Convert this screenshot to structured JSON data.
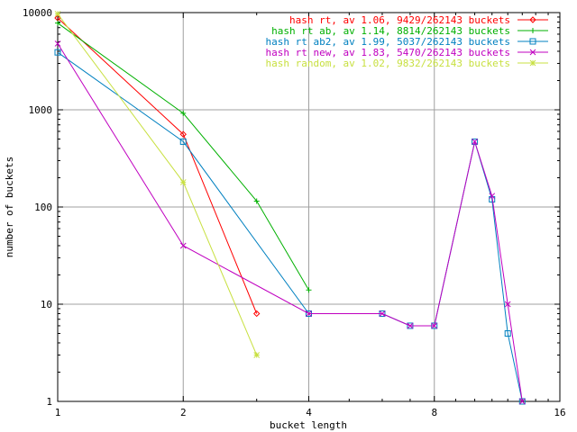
{
  "chart_data": {
    "type": "line",
    "title": "",
    "xlabel": "bucket length",
    "ylabel": "number of buckets",
    "x_scale": "log2",
    "y_scale": "log10",
    "xlim": [
      1,
      16
    ],
    "ylim": [
      1,
      10000
    ],
    "grid": true,
    "legend_position": "top-right",
    "x_ticks": [
      {
        "value": 1,
        "label": "1"
      },
      {
        "value": 2,
        "label": "2"
      },
      {
        "value": 4,
        "label": "4"
      },
      {
        "value": 8,
        "label": "8"
      },
      {
        "value": 16,
        "label": "16"
      }
    ],
    "y_ticks": [
      {
        "value": 1,
        "label": "1"
      },
      {
        "value": 10,
        "label": "10"
      },
      {
        "value": 100,
        "label": "100"
      },
      {
        "value": 1000,
        "label": "1000"
      },
      {
        "value": 10000,
        "label": "10000"
      }
    ],
    "series": [
      {
        "name": "hash rt, av 1.06, 9429/262143 buckets",
        "color": "#ff0000",
        "marker": "diamond",
        "x": [
          1,
          2,
          3
        ],
        "y": [
          8800,
          560,
          8
        ]
      },
      {
        "name": "hash rt ab, av 1.14, 8814/262143 buckets",
        "color": "#00b000",
        "marker": "plus",
        "x": [
          1,
          2,
          3,
          4
        ],
        "y": [
          7800,
          920,
          115,
          14
        ]
      },
      {
        "name": "hash rt ab2, av 1.99, 5037/262143 buckets",
        "color": "#0080c0",
        "marker": "square",
        "x": [
          1,
          2,
          4,
          6,
          7,
          8,
          10,
          11,
          12,
          13
        ],
        "y": [
          3900,
          470,
          8,
          8,
          6,
          6,
          470,
          120,
          5,
          1
        ]
      },
      {
        "name": "hash rt new, av 1.83, 5470/262143 buckets",
        "color": "#c000c0",
        "marker": "cross",
        "x": [
          1,
          2,
          4,
          6,
          7,
          8,
          10,
          11,
          12,
          13
        ],
        "y": [
          4800,
          40,
          8,
          8,
          6,
          6,
          470,
          130,
          10,
          1
        ]
      },
      {
        "name": "hash random, av 1.02, 9832/262143 buckets",
        "color": "#c8e040",
        "marker": "star",
        "x": [
          1,
          2,
          3
        ],
        "y": [
          9700,
          180,
          3
        ]
      }
    ]
  }
}
